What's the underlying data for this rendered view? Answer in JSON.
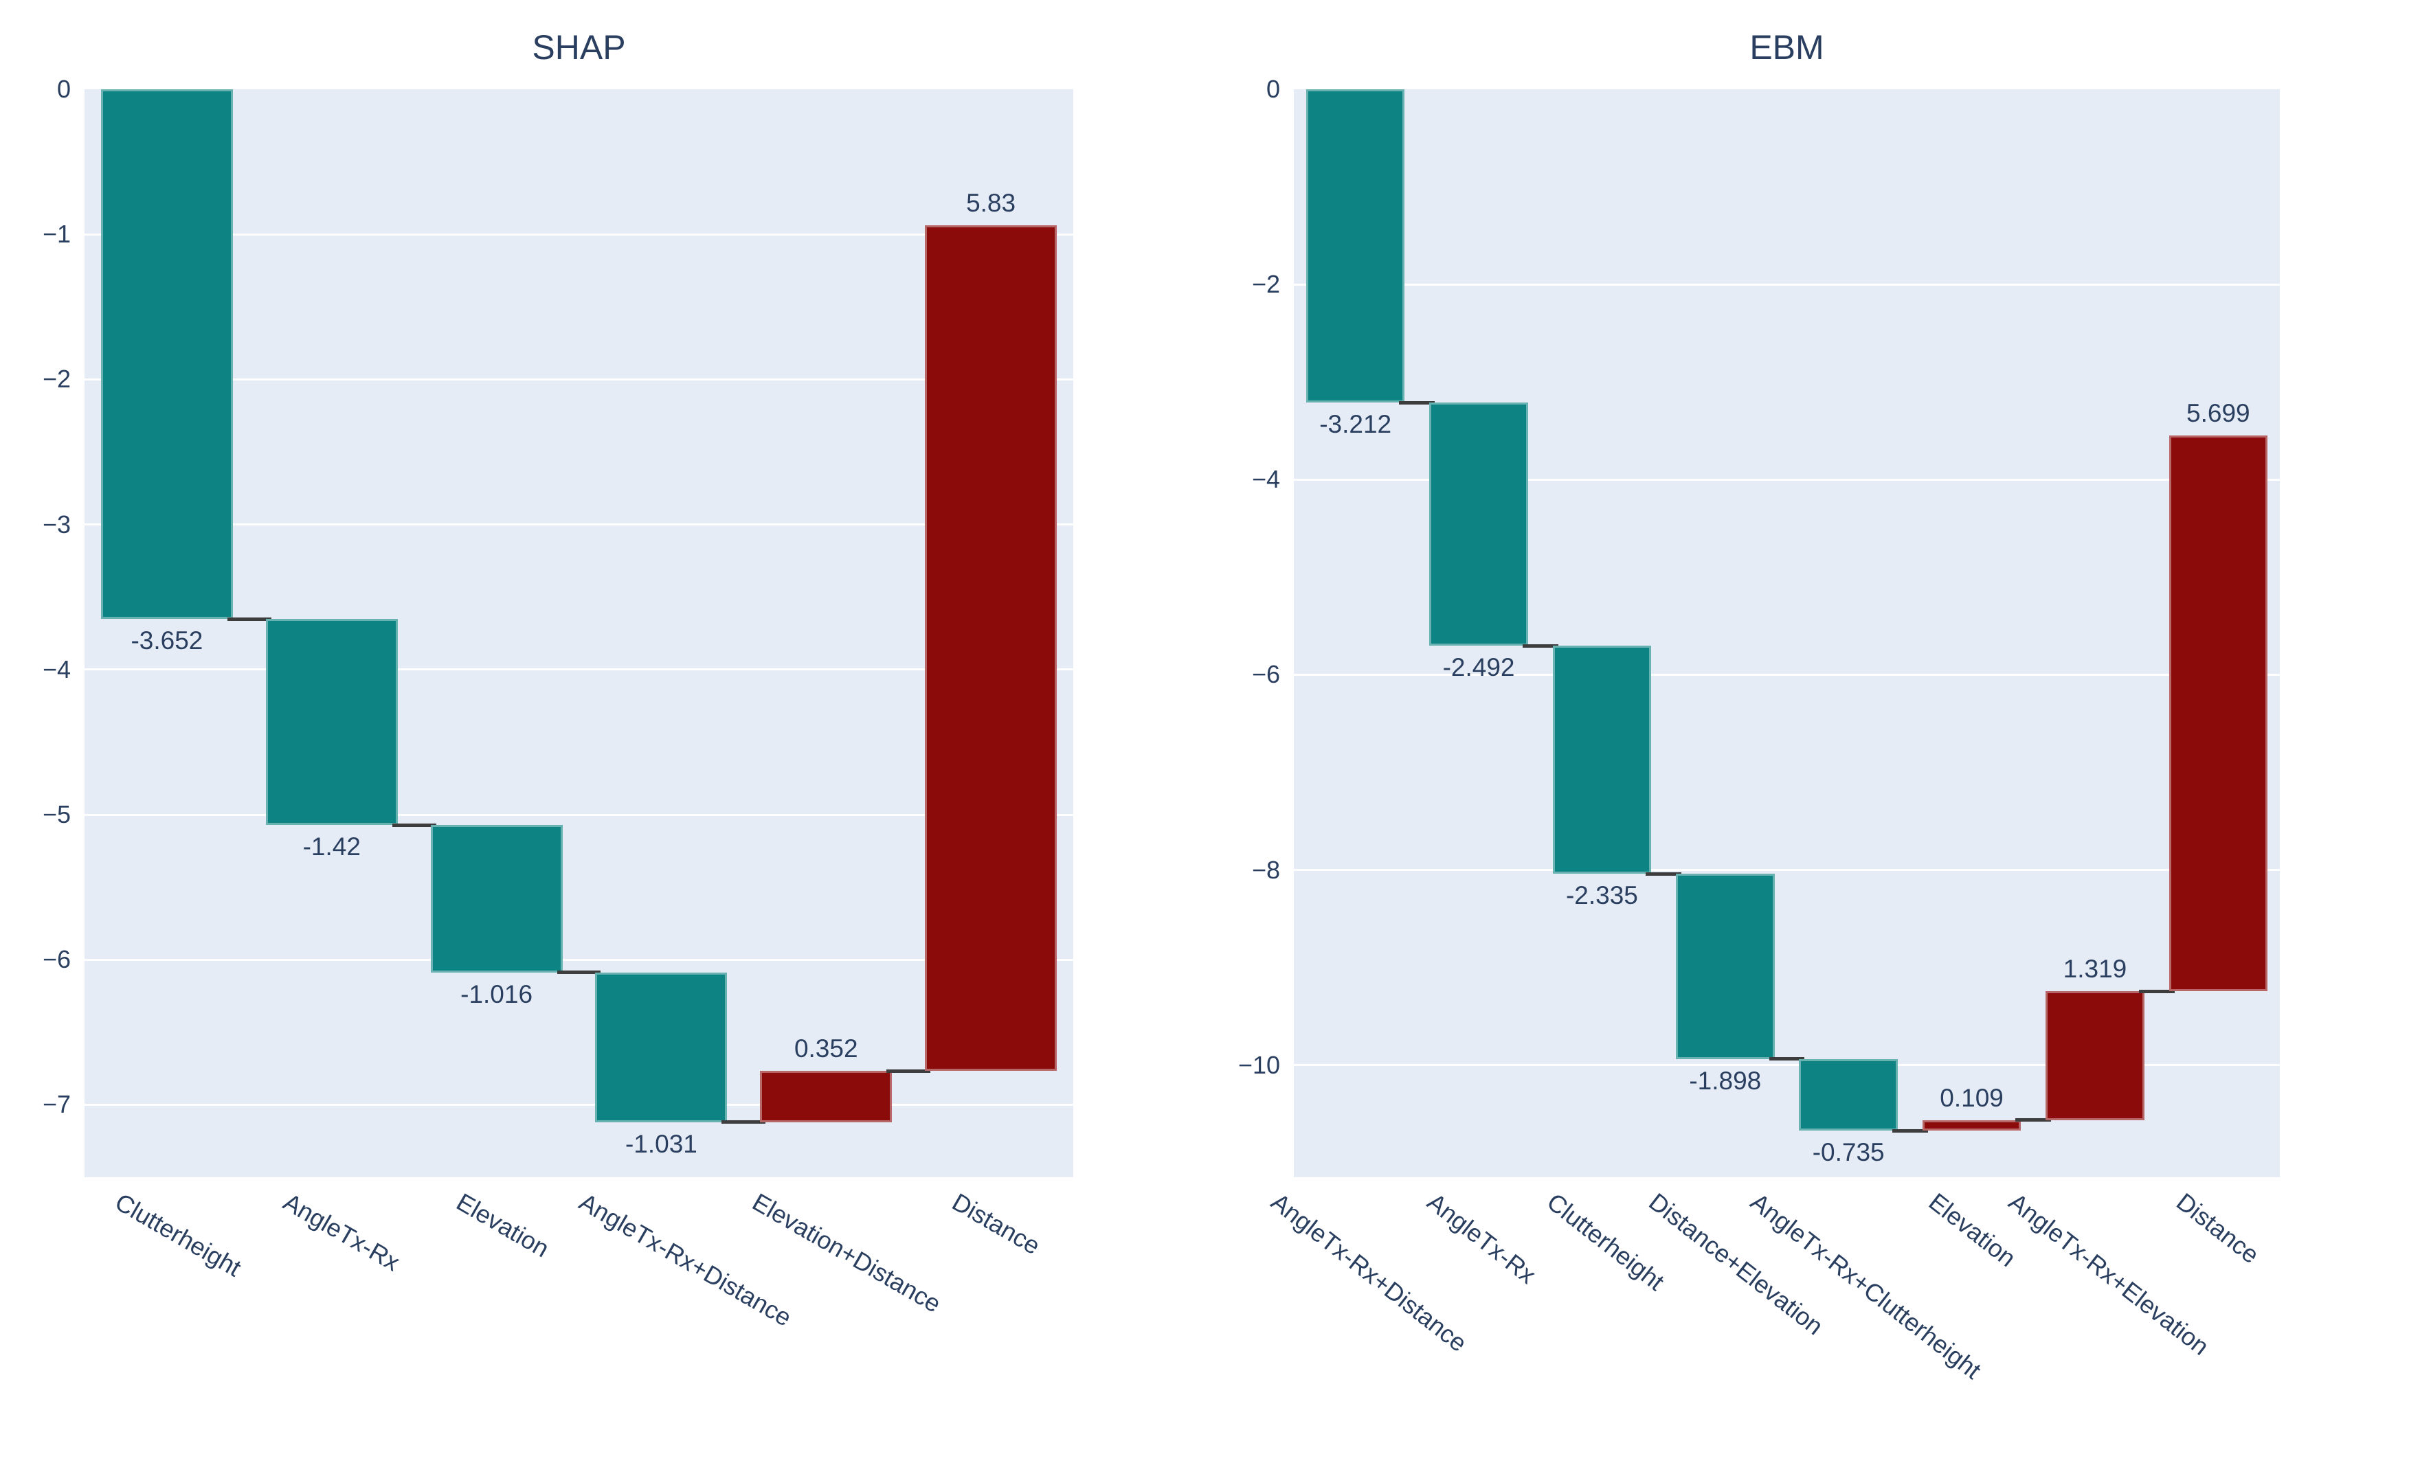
{
  "style": {
    "background": "#ffffff",
    "plot_background": "#e5ecf6",
    "grid_color": "#ffffff",
    "text_color": "#2a3f5f",
    "decreasing_color": "#0d8383",
    "increasing_color": "#8b0b0b",
    "connector_color": "#3d3d3d"
  },
  "chart_data": [
    {
      "type": "waterfall",
      "title": "SHAP",
      "orientation": "vertical",
      "categories": [
        "Clutterheight",
        "AngleTx-Rx",
        "Elevation",
        "AngleTx-Rx+Distance",
        "Elevation+Distance",
        "Distance"
      ],
      "values": [
        -3.652,
        -1.42,
        -1.016,
        -1.031,
        0.352,
        5.83
      ],
      "value_labels": [
        "-3.652",
        "-1.42",
        "-1.016",
        "-1.031",
        "0.352",
        "5.83"
      ],
      "cumulative": [
        -3.652,
        -5.072,
        -6.088,
        -7.119,
        -6.767,
        -0.937
      ],
      "start": 0,
      "xlabel": "",
      "ylabel": "",
      "ylim": [
        -7.5,
        0
      ],
      "ytick_values": [
        0,
        -1,
        -2,
        -3,
        -4,
        -5,
        -6,
        -7
      ],
      "ytick_labels": [
        "0",
        "−1",
        "−2",
        "−3",
        "−4",
        "−5",
        "−6",
        "−7"
      ],
      "xtick_angle_deg": 30,
      "grid": true,
      "legend": false
    },
    {
      "type": "waterfall",
      "title": "EBM",
      "orientation": "vertical",
      "categories": [
        "AngleTx-Rx+Distance",
        "AngleTx-Rx",
        "Clutterheight",
        "Distance+Elevation",
        "AngleTx-Rx+Clutterheight",
        "Elevation",
        "AngleTx-Rx+Elevation",
        "Distance"
      ],
      "values": [
        -3.212,
        -2.492,
        -2.335,
        -1.898,
        -0.735,
        0.109,
        1.319,
        5.699
      ],
      "value_labels": [
        "-3.212",
        "-2.492",
        "-2.335",
        "-1.898",
        "-0.735",
        "0.109",
        "1.319",
        "5.699"
      ],
      "cumulative": [
        -3.212,
        -5.704,
        -8.039,
        -9.937,
        -10.672,
        -10.563,
        -9.244,
        -3.545
      ],
      "start": 0,
      "xlabel": "",
      "ylabel": "",
      "ylim": [
        -11.15,
        0
      ],
      "ytick_values": [
        0,
        -2,
        -4,
        -6,
        -8,
        -10
      ],
      "ytick_labels": [
        "0",
        "−2",
        "−4",
        "−6",
        "−8",
        "−10"
      ],
      "xtick_angle_deg": 38,
      "grid": true,
      "legend": false
    }
  ]
}
